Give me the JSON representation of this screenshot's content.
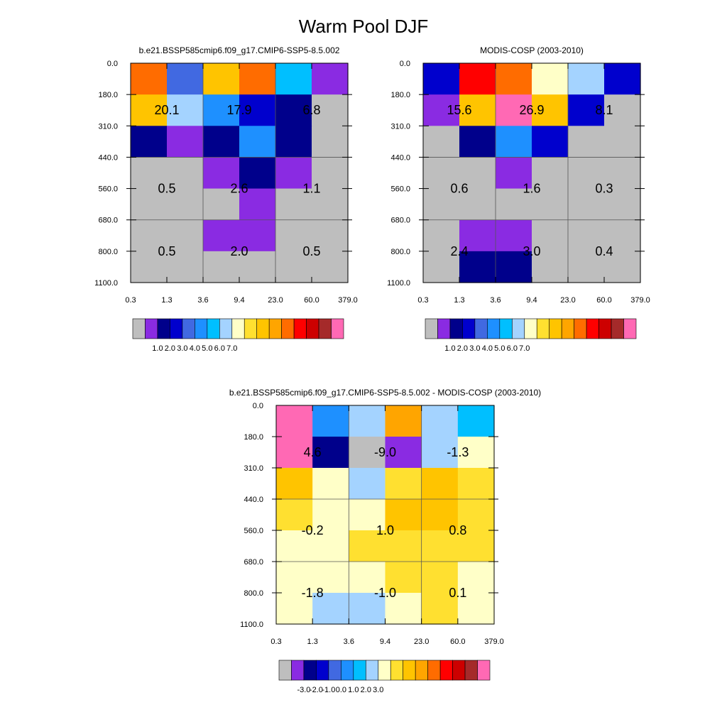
{
  "figure_title": "Warm Pool DJF",
  "chart_data": [
    {
      "type": "heatmap",
      "title": "b.e21.BSSP585cmip6.f09_g17.CMIP6-SSP5-8.5.002",
      "x_ticks": [
        "0.3",
        "1.3",
        "3.6",
        "9.4",
        "23.0",
        "60.0",
        "379.0"
      ],
      "y_ticks": [
        "0.0",
        "180.0",
        "310.0",
        "440.0",
        "560.0",
        "680.0",
        "800.0",
        "1100.0"
      ],
      "cells": [
        [
          12,
          4,
          10,
          12,
          6,
          1
        ],
        [
          10,
          7,
          5,
          3,
          2,
          0
        ],
        [
          2,
          1,
          2,
          5,
          2,
          0
        ],
        [
          0,
          0,
          1,
          2,
          1,
          0
        ],
        [
          0,
          0,
          0,
          1,
          0,
          0
        ],
        [
          0,
          0,
          1,
          1,
          0,
          0
        ],
        [
          0,
          0,
          0,
          0,
          0,
          0
        ]
      ],
      "cell_values": [
        [
          "20.1",
          "17.9",
          "6.8"
        ],
        [
          "0.5",
          "2.6",
          "1.1"
        ],
        [
          "0.5",
          "2.0",
          "0.5"
        ]
      ],
      "colorbar_labels": [
        "1.0",
        "2.0",
        "3.0",
        "4.0",
        "5.0",
        "6.0",
        "7.0"
      ]
    },
    {
      "type": "heatmap",
      "title": "MODIS-COSP (2003-2010)",
      "x_ticks": [
        "0.3",
        "1.3",
        "3.6",
        "9.4",
        "23.0",
        "60.0",
        "379.0"
      ],
      "y_ticks": [
        "0.0",
        "180.0",
        "310.0",
        "440.0",
        "560.0",
        "680.0",
        "800.0",
        "1100.0"
      ],
      "cells": [
        [
          3,
          13,
          12,
          8,
          7,
          3
        ],
        [
          1,
          10,
          16,
          10,
          3,
          0
        ],
        [
          0,
          2,
          5,
          3,
          0,
          0
        ],
        [
          0,
          0,
          1,
          0,
          0,
          0
        ],
        [
          0,
          0,
          0,
          0,
          0,
          0
        ],
        [
          0,
          1,
          1,
          0,
          0,
          0
        ],
        [
          0,
          2,
          2,
          0,
          0,
          0
        ]
      ],
      "cell_values": [
        [
          "15.6",
          "26.9",
          "8.1"
        ],
        [
          "0.6",
          "1.6",
          "0.3"
        ],
        [
          "2.4",
          "3.0",
          "0.4"
        ]
      ],
      "colorbar_labels": [
        "1.0",
        "2.0",
        "3.0",
        "4.0",
        "5.0",
        "6.0",
        "7.0"
      ]
    },
    {
      "type": "heatmap",
      "title": "b.e21.BSSP585cmip6.f09_g17.CMIP6-SSP5-8.5.002 - MODIS-COSP (2003-2010)",
      "x_ticks": [
        "0.3",
        "1.3",
        "3.6",
        "9.4",
        "23.0",
        "60.0",
        "379.0"
      ],
      "y_ticks": [
        "0.0",
        "180.0",
        "310.0",
        "440.0",
        "560.0",
        "680.0",
        "800.0",
        "1100.0"
      ],
      "cells": [
        [
          16,
          5,
          7,
          11,
          7,
          6
        ],
        [
          16,
          2,
          0,
          1,
          7,
          8
        ],
        [
          10,
          8,
          7,
          9,
          10,
          9
        ],
        [
          9,
          8,
          8,
          10,
          10,
          9
        ],
        [
          8,
          8,
          9,
          9,
          9,
          9
        ],
        [
          8,
          8,
          8,
          9,
          9,
          8
        ],
        [
          8,
          7,
          7,
          8,
          9,
          8
        ]
      ],
      "cell_values": [
        [
          "4.6",
          "-9.0",
          "-1.3"
        ],
        [
          "-0.2",
          "1.0",
          "0.8"
        ],
        [
          "-1.8",
          "-1.0",
          "0.1"
        ]
      ],
      "colorbar_labels": [
        "-3.0",
        "-2.0",
        "-1.0",
        "0.0",
        "1.0",
        "2.0",
        "3.0"
      ]
    }
  ],
  "colormap": [
    "#BEBEBE",
    "#8A2BE2",
    "#00008B",
    "#0000CD",
    "#4169E1",
    "#1E90FF",
    "#00BFFF",
    "#A4D3FF",
    "#FFFFC8",
    "#FFE030",
    "#FFC400",
    "#FFA500",
    "#FF6C00",
    "#FF0000",
    "#CD0000",
    "#A52A2A",
    "#FF69B4"
  ]
}
